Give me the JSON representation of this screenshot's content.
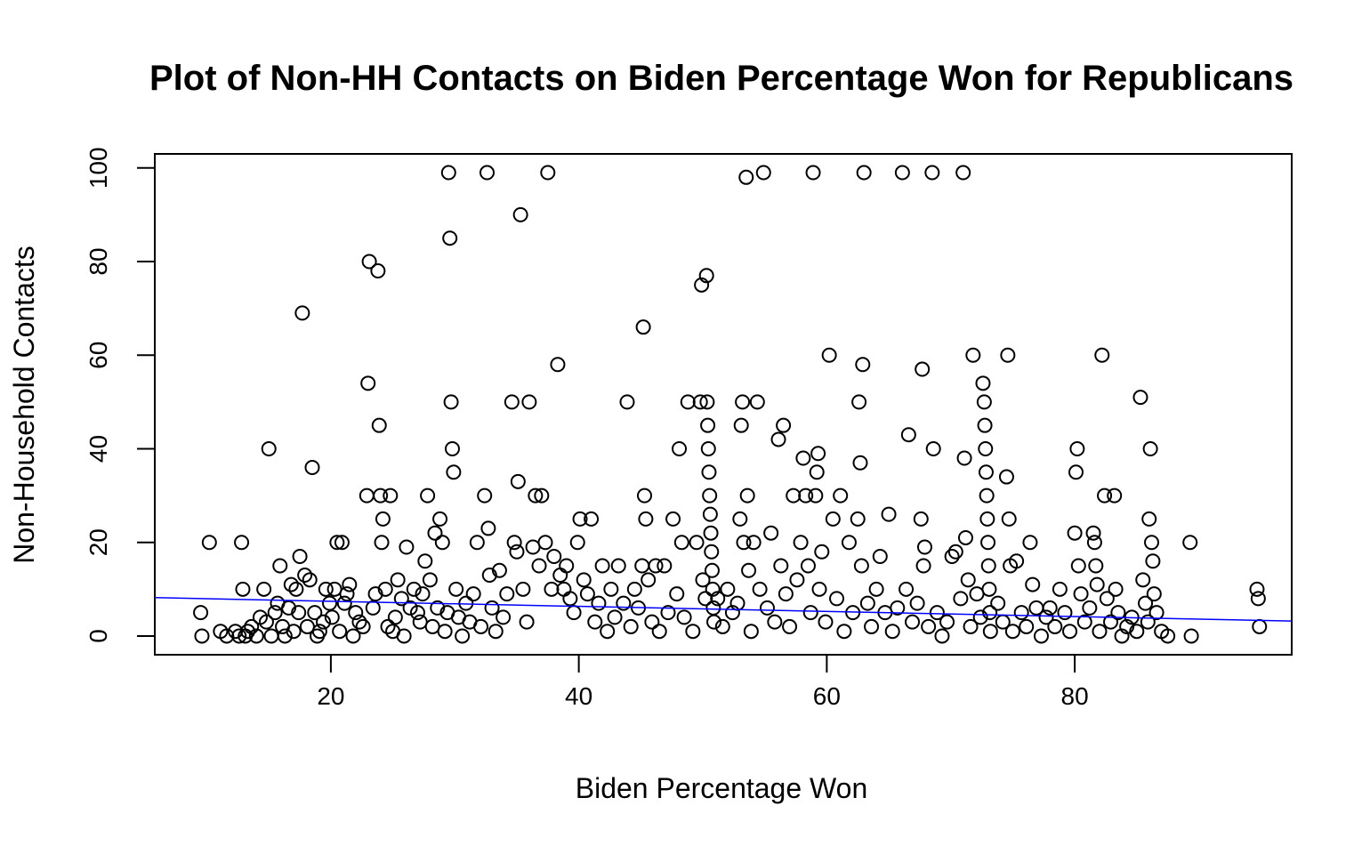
{
  "chart_data": {
    "type": "scatter",
    "title": "Plot of Non-HH Contacts on Biden Percentage Won for Republicans",
    "xlabel": "Biden Percentage Won",
    "ylabel": "Non-Household Contacts",
    "xlim": [
      5.8,
      97.5
    ],
    "ylim": [
      -4,
      103
    ],
    "x_ticks": [
      20,
      40,
      60,
      80
    ],
    "y_ticks": [
      0,
      20,
      40,
      60,
      80,
      100
    ],
    "grid": false,
    "point_style": "open-circle",
    "point_color": "#000000",
    "fit_line": {
      "x": [
        5.8,
        97.5
      ],
      "y": [
        8.2,
        3.2
      ],
      "color": "#0000ff"
    },
    "points": [
      [
        9.5,
        5
      ],
      [
        9.6,
        0
      ],
      [
        10.2,
        20
      ],
      [
        11.1,
        1
      ],
      [
        11.6,
        0
      ],
      [
        12.3,
        1
      ],
      [
        12.6,
        0
      ],
      [
        12.8,
        20
      ],
      [
        12.9,
        10
      ],
      [
        13.1,
        0
      ],
      [
        13.3,
        1
      ],
      [
        13.6,
        2
      ],
      [
        14.0,
        0
      ],
      [
        14.3,
        4
      ],
      [
        14.6,
        10
      ],
      [
        14.8,
        3
      ],
      [
        15.0,
        40
      ],
      [
        15.2,
        0
      ],
      [
        15.5,
        5
      ],
      [
        15.7,
        7
      ],
      [
        15.9,
        15
      ],
      [
        16.1,
        2
      ],
      [
        16.3,
        0
      ],
      [
        16.6,
        6
      ],
      [
        16.8,
        11
      ],
      [
        17.0,
        1
      ],
      [
        17.2,
        10
      ],
      [
        17.4,
        5
      ],
      [
        17.5,
        17
      ],
      [
        17.7,
        69
      ],
      [
        17.9,
        13
      ],
      [
        18.1,
        2
      ],
      [
        18.3,
        12
      ],
      [
        18.5,
        36
      ],
      [
        18.7,
        5
      ],
      [
        18.9,
        0
      ],
      [
        19.1,
        1
      ],
      [
        19.4,
        3
      ],
      [
        19.6,
        10
      ],
      [
        19.9,
        7
      ],
      [
        20.1,
        4
      ],
      [
        20.3,
        10
      ],
      [
        20.5,
        20
      ],
      [
        20.7,
        1
      ],
      [
        20.9,
        20
      ],
      [
        21.1,
        7
      ],
      [
        21.3,
        9
      ],
      [
        21.5,
        11
      ],
      [
        21.8,
        0
      ],
      [
        22.0,
        5
      ],
      [
        22.3,
        3
      ],
      [
        22.6,
        2
      ],
      [
        22.9,
        30
      ],
      [
        23.0,
        54
      ],
      [
        23.1,
        80
      ],
      [
        23.4,
        6
      ],
      [
        23.6,
        9
      ],
      [
        23.8,
        78
      ],
      [
        23.9,
        45
      ],
      [
        24.0,
        30
      ],
      [
        24.1,
        20
      ],
      [
        24.2,
        25
      ],
      [
        24.4,
        10
      ],
      [
        24.6,
        2
      ],
      [
        24.8,
        30
      ],
      [
        25.0,
        1
      ],
      [
        25.2,
        4
      ],
      [
        25.4,
        12
      ],
      [
        25.7,
        8
      ],
      [
        25.9,
        0
      ],
      [
        26.1,
        19
      ],
      [
        26.4,
        6
      ],
      [
        26.7,
        10
      ],
      [
        27.0,
        5
      ],
      [
        27.2,
        3
      ],
      [
        27.4,
        9
      ],
      [
        27.6,
        16
      ],
      [
        27.8,
        30
      ],
      [
        28.0,
        12
      ],
      [
        28.2,
        2
      ],
      [
        28.4,
        22
      ],
      [
        28.6,
        6
      ],
      [
        28.8,
        25
      ],
      [
        29.0,
        20
      ],
      [
        29.2,
        1
      ],
      [
        29.4,
        5
      ],
      [
        29.5,
        99
      ],
      [
        29.6,
        85
      ],
      [
        29.7,
        50
      ],
      [
        29.8,
        40
      ],
      [
        29.9,
        35
      ],
      [
        30.1,
        10
      ],
      [
        30.3,
        4
      ],
      [
        30.6,
        0
      ],
      [
        30.9,
        7
      ],
      [
        31.2,
        3
      ],
      [
        31.5,
        9
      ],
      [
        31.8,
        20
      ],
      [
        32.1,
        2
      ],
      [
        32.4,
        30
      ],
      [
        32.6,
        99
      ],
      [
        32.7,
        23
      ],
      [
        32.8,
        13
      ],
      [
        33.0,
        6
      ],
      [
        33.3,
        1
      ],
      [
        33.6,
        14
      ],
      [
        33.9,
        4
      ],
      [
        34.2,
        9
      ],
      [
        34.6,
        50
      ],
      [
        34.8,
        20
      ],
      [
        35.0,
        18
      ],
      [
        35.1,
        33
      ],
      [
        35.3,
        90
      ],
      [
        35.5,
        10
      ],
      [
        35.8,
        3
      ],
      [
        36.0,
        50
      ],
      [
        36.3,
        19
      ],
      [
        36.5,
        30
      ],
      [
        36.8,
        15
      ],
      [
        37.0,
        30
      ],
      [
        37.3,
        20
      ],
      [
        37.5,
        99
      ],
      [
        37.8,
        10
      ],
      [
        38.0,
        17
      ],
      [
        38.3,
        58
      ],
      [
        38.5,
        13
      ],
      [
        38.8,
        10
      ],
      [
        39.0,
        15
      ],
      [
        39.3,
        8
      ],
      [
        39.6,
        5
      ],
      [
        39.9,
        20
      ],
      [
        40.1,
        25
      ],
      [
        40.4,
        12
      ],
      [
        40.7,
        9
      ],
      [
        41.0,
        25
      ],
      [
        41.3,
        3
      ],
      [
        41.6,
        7
      ],
      [
        41.9,
        15
      ],
      [
        42.3,
        1
      ],
      [
        42.6,
        10
      ],
      [
        42.9,
        4
      ],
      [
        43.2,
        15
      ],
      [
        43.6,
        7
      ],
      [
        43.9,
        50
      ],
      [
        44.2,
        2
      ],
      [
        44.5,
        10
      ],
      [
        44.8,
        6
      ],
      [
        45.1,
        15
      ],
      [
        45.2,
        66
      ],
      [
        45.3,
        30
      ],
      [
        45.4,
        25
      ],
      [
        45.6,
        12
      ],
      [
        45.9,
        3
      ],
      [
        46.2,
        15
      ],
      [
        46.5,
        1
      ],
      [
        46.9,
        15
      ],
      [
        47.2,
        5
      ],
      [
        47.6,
        25
      ],
      [
        47.9,
        9
      ],
      [
        48.1,
        40
      ],
      [
        48.3,
        20
      ],
      [
        48.5,
        4
      ],
      [
        48.8,
        50
      ],
      [
        49.2,
        1
      ],
      [
        49.5,
        20
      ],
      [
        49.8,
        50
      ],
      [
        49.9,
        75
      ],
      [
        50.0,
        12
      ],
      [
        50.2,
        8
      ],
      [
        50.3,
        77
      ],
      [
        50.35,
        50
      ],
      [
        50.4,
        45
      ],
      [
        50.45,
        40
      ],
      [
        50.5,
        35
      ],
      [
        50.55,
        30
      ],
      [
        50.6,
        26
      ],
      [
        50.65,
        22
      ],
      [
        50.7,
        18
      ],
      [
        50.75,
        14
      ],
      [
        50.8,
        10
      ],
      [
        50.85,
        6
      ],
      [
        50.9,
        3
      ],
      [
        51.2,
        8
      ],
      [
        51.6,
        2
      ],
      [
        52.0,
        10
      ],
      [
        52.4,
        5
      ],
      [
        52.8,
        7
      ],
      [
        53.0,
        25
      ],
      [
        53.1,
        45
      ],
      [
        53.2,
        50
      ],
      [
        53.3,
        20
      ],
      [
        53.5,
        98
      ],
      [
        53.6,
        30
      ],
      [
        53.7,
        14
      ],
      [
        53.9,
        1
      ],
      [
        54.1,
        20
      ],
      [
        54.4,
        50
      ],
      [
        54.6,
        10
      ],
      [
        54.9,
        99
      ],
      [
        55.2,
        6
      ],
      [
        55.5,
        22
      ],
      [
        55.8,
        3
      ],
      [
        56.1,
        42
      ],
      [
        56.3,
        15
      ],
      [
        56.5,
        45
      ],
      [
        56.7,
        9
      ],
      [
        57.0,
        2
      ],
      [
        57.3,
        30
      ],
      [
        57.6,
        12
      ],
      [
        57.9,
        20
      ],
      [
        58.1,
        38
      ],
      [
        58.3,
        30
      ],
      [
        58.5,
        15
      ],
      [
        58.7,
        5
      ],
      [
        58.9,
        99
      ],
      [
        59.1,
        30
      ],
      [
        59.2,
        35
      ],
      [
        59.3,
        39
      ],
      [
        59.4,
        10
      ],
      [
        59.6,
        18
      ],
      [
        59.9,
        3
      ],
      [
        60.2,
        60
      ],
      [
        60.5,
        25
      ],
      [
        60.8,
        8
      ],
      [
        61.1,
        30
      ],
      [
        61.4,
        1
      ],
      [
        61.8,
        20
      ],
      [
        62.1,
        5
      ],
      [
        62.5,
        25
      ],
      [
        62.6,
        50
      ],
      [
        62.7,
        37
      ],
      [
        62.8,
        15
      ],
      [
        62.9,
        58
      ],
      [
        63.0,
        99
      ],
      [
        63.3,
        7
      ],
      [
        63.6,
        2
      ],
      [
        64.0,
        10
      ],
      [
        64.3,
        17
      ],
      [
        64.7,
        5
      ],
      [
        65.0,
        26
      ],
      [
        65.3,
        1
      ],
      [
        65.7,
        6
      ],
      [
        66.1,
        99
      ],
      [
        66.4,
        10
      ],
      [
        66.6,
        43
      ],
      [
        66.9,
        3
      ],
      [
        67.3,
        7
      ],
      [
        67.6,
        25
      ],
      [
        67.7,
        57
      ],
      [
        67.8,
        15
      ],
      [
        67.9,
        19
      ],
      [
        68.2,
        2
      ],
      [
        68.5,
        99
      ],
      [
        68.6,
        40
      ],
      [
        68.9,
        5
      ],
      [
        69.3,
        0
      ],
      [
        69.7,
        3
      ],
      [
        70.1,
        17
      ],
      [
        70.4,
        18
      ],
      [
        70.8,
        8
      ],
      [
        71.0,
        99
      ],
      [
        71.1,
        38
      ],
      [
        71.2,
        21
      ],
      [
        71.4,
        12
      ],
      [
        71.6,
        2
      ],
      [
        71.8,
        60
      ],
      [
        72.1,
        9
      ],
      [
        72.4,
        4
      ],
      [
        72.6,
        54
      ],
      [
        72.7,
        50
      ],
      [
        72.75,
        45
      ],
      [
        72.8,
        40
      ],
      [
        72.85,
        35
      ],
      [
        72.9,
        30
      ],
      [
        72.95,
        25
      ],
      [
        73.0,
        20
      ],
      [
        73.05,
        15
      ],
      [
        73.1,
        10
      ],
      [
        73.15,
        5
      ],
      [
        73.2,
        1
      ],
      [
        73.8,
        7
      ],
      [
        74.2,
        3
      ],
      [
        74.5,
        34
      ],
      [
        74.6,
        60
      ],
      [
        74.7,
        25
      ],
      [
        74.8,
        15
      ],
      [
        75.0,
        1
      ],
      [
        75.3,
        16
      ],
      [
        75.7,
        5
      ],
      [
        76.1,
        2
      ],
      [
        76.4,
        20
      ],
      [
        76.6,
        11
      ],
      [
        76.9,
        6
      ],
      [
        77.3,
        0
      ],
      [
        77.7,
        4
      ],
      [
        78.0,
        6
      ],
      [
        78.4,
        2
      ],
      [
        78.8,
        10
      ],
      [
        79.2,
        5
      ],
      [
        79.6,
        1
      ],
      [
        80.0,
        22
      ],
      [
        80.1,
        35
      ],
      [
        80.2,
        40
      ],
      [
        80.3,
        15
      ],
      [
        80.5,
        9
      ],
      [
        80.8,
        3
      ],
      [
        81.2,
        6
      ],
      [
        81.5,
        22
      ],
      [
        81.6,
        20
      ],
      [
        81.7,
        15
      ],
      [
        81.8,
        11
      ],
      [
        82.0,
        1
      ],
      [
        82.2,
        60
      ],
      [
        82.4,
        30
      ],
      [
        82.6,
        8
      ],
      [
        82.9,
        3
      ],
      [
        83.2,
        30
      ],
      [
        83.3,
        10
      ],
      [
        83.5,
        5
      ],
      [
        83.8,
        0
      ],
      [
        84.2,
        2
      ],
      [
        84.6,
        4
      ],
      [
        85.0,
        1
      ],
      [
        85.3,
        51
      ],
      [
        85.5,
        12
      ],
      [
        85.7,
        7
      ],
      [
        85.9,
        3
      ],
      [
        86.0,
        25
      ],
      [
        86.1,
        40
      ],
      [
        86.2,
        20
      ],
      [
        86.3,
        16
      ],
      [
        86.4,
        9
      ],
      [
        86.6,
        5
      ],
      [
        87.0,
        1
      ],
      [
        87.5,
        0
      ],
      [
        89.3,
        20
      ],
      [
        89.4,
        0
      ],
      [
        94.7,
        10
      ],
      [
        94.8,
        8
      ],
      [
        94.9,
        2
      ]
    ]
  }
}
